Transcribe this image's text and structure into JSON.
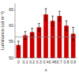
{
  "chart_data": {
    "type": "bar",
    "categories": [
      "0",
      "0.1",
      "0.2",
      "0.3",
      "0.4",
      "0.46",
      "0.7",
      "0.8",
      "0.9"
    ],
    "values": [
      54.0,
      57.0,
      58.0,
      59.5,
      63.5,
      61.5,
      63.0,
      60.0,
      57.5
    ],
    "errors": [
      1.2,
      1.2,
      1.2,
      1.2,
      1.8,
      1.5,
      1.5,
      1.5,
      2.0
    ],
    "color": "#cc0000",
    "reference_line": 56.5,
    "xlabel": "x",
    "ylabel": "Luminance (cd m⁻²)",
    "ylim": [
      50,
      67
    ],
    "yticks": [
      50,
      55,
      60,
      65
    ],
    "grid": false
  }
}
